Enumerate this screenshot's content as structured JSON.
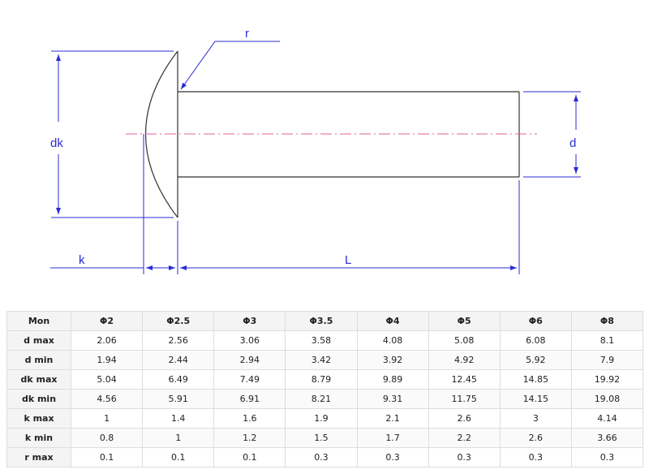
{
  "labels": {
    "dk": "dk",
    "d": "d",
    "k": "k",
    "L": "L",
    "r": "r"
  },
  "colors": {
    "dimension": "#2b2bd6",
    "outline": "#333333",
    "centerline": "#e0609a"
  },
  "table": {
    "header": [
      "Mon",
      "Φ2",
      "Φ2.5",
      "Φ3",
      "Φ3.5",
      "Φ4",
      "Φ5",
      "Φ6",
      "Φ8"
    ],
    "rows": [
      [
        "d max",
        "2.06",
        "2.56",
        "3.06",
        "3.58",
        "4.08",
        "5.08",
        "6.08",
        "8.1"
      ],
      [
        "d min",
        "1.94",
        "2.44",
        "2.94",
        "3.42",
        "3.92",
        "4.92",
        "5.92",
        "7.9"
      ],
      [
        "dk max",
        "5.04",
        "6.49",
        "7.49",
        "8.79",
        "9.89",
        "12.45",
        "14.85",
        "19.92"
      ],
      [
        "dk min",
        "4.56",
        "5.91",
        "6.91",
        "8.21",
        "9.31",
        "11.75",
        "14.15",
        "19.08"
      ],
      [
        "k max",
        "1",
        "1.4",
        "1.6",
        "1.9",
        "2.1",
        "2.6",
        "3",
        "4.14"
      ],
      [
        "k min",
        "0.8",
        "1",
        "1.2",
        "1.5",
        "1.7",
        "2.2",
        "2.6",
        "3.66"
      ],
      [
        "r max",
        "0.1",
        "0.1",
        "0.1",
        "0.3",
        "0.3",
        "0.3",
        "0.3",
        "0.3"
      ]
    ]
  }
}
